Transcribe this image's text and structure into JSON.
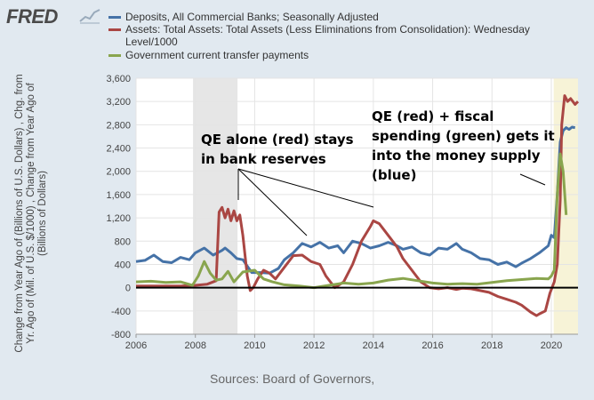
{
  "logo": {
    "text": "FRED"
  },
  "legend": [
    {
      "label": "Deposits, All Commercial Banks; Seasonally Adjusted",
      "color": "#4572a7"
    },
    {
      "label": "Assets: Total Assets: Total Assets (Less Eliminations from Consolidation): Wednesday Level/1000",
      "color": "#aa4643"
    },
    {
      "label": "Government current transfer payments",
      "color": "#89a54e"
    }
  ],
  "ylabel": "Change from Year Ago of (Billions of U.S. Dollars) , Chg. from Yr. Ago of (Mil. of U.S. $/1000) , Change from Year Ago of (Billions of Dollars)",
  "source": "Sources: Board of Governors,",
  "annotations": {
    "left_line1": "QE alone (red) stays",
    "left_line2": "in bank reserves",
    "right_line1": "QE (red) + fiscal",
    "right_line2": "spending (green) gets it",
    "right_line3": "into the money supply",
    "right_line4": "(blue)"
  },
  "chart_data": {
    "type": "line",
    "xlim": [
      2006,
      2020.9
    ],
    "ylim": [
      -800,
      3600
    ],
    "x_ticks": [
      2006,
      2008,
      2010,
      2012,
      2014,
      2016,
      2018,
      2020
    ],
    "y_ticks": [
      -800,
      -400,
      0,
      400,
      800,
      1200,
      1600,
      2000,
      2400,
      2800,
      3200,
      3600
    ],
    "y_tick_labels": [
      "-800",
      "-400",
      "0",
      "400",
      "800",
      "1,200",
      "1,600",
      "2,000",
      "2,400",
      "2,800",
      "3,200",
      "3,600"
    ],
    "recessions": [
      [
        2007.92,
        2009.42
      ],
      [
        2020.08,
        2020.9
      ]
    ],
    "series": [
      {
        "name": "Deposits, All Commercial Banks; Seasonally Adjusted",
        "color": "#4572a7",
        "x": [
          2006.0,
          2006.3,
          2006.6,
          2006.9,
          2007.2,
          2007.5,
          2007.8,
          2008.0,
          2008.3,
          2008.6,
          2008.9,
          2009.0,
          2009.2,
          2009.4,
          2009.6,
          2009.9,
          2010.2,
          2010.5,
          2010.8,
          2011.0,
          2011.3,
          2011.6,
          2011.9,
          2012.2,
          2012.5,
          2012.8,
          2013.0,
          2013.3,
          2013.6,
          2013.9,
          2014.2,
          2014.5,
          2014.8,
          2015.0,
          2015.3,
          2015.6,
          2015.9,
          2016.2,
          2016.5,
          2016.8,
          2017.0,
          2017.3,
          2017.6,
          2017.9,
          2018.2,
          2018.5,
          2018.8,
          2019.0,
          2019.3,
          2019.6,
          2019.9,
          2020.0,
          2020.1,
          2020.2,
          2020.3,
          2020.4,
          2020.5,
          2020.6,
          2020.7,
          2020.8
        ],
        "y": [
          450,
          470,
          560,
          450,
          430,
          520,
          480,
          600,
          680,
          560,
          640,
          680,
          600,
          500,
          480,
          260,
          260,
          250,
          330,
          480,
          600,
          760,
          700,
          780,
          680,
          720,
          600,
          800,
          760,
          680,
          720,
          780,
          720,
          660,
          700,
          600,
          560,
          680,
          660,
          760,
          660,
          600,
          500,
          480,
          400,
          440,
          360,
          420,
          500,
          600,
          720,
          900,
          860,
          1600,
          2500,
          2700,
          2750,
          2720,
          2760,
          2750
        ]
      },
      {
        "name": "Assets: Total Assets: Total Assets (Less Eliminations from Consolidation): Wednesday Level/1000",
        "color": "#aa4643",
        "x": [
          2006.0,
          2006.5,
          2007.0,
          2007.5,
          2008.0,
          2008.4,
          2008.7,
          2008.8,
          2008.9,
          2009.0,
          2009.1,
          2009.2,
          2009.3,
          2009.4,
          2009.5,
          2009.6,
          2009.75,
          2009.85,
          2009.95,
          2010.1,
          2010.3,
          2010.5,
          2010.7,
          2011.0,
          2011.3,
          2011.6,
          2011.9,
          2012.2,
          2012.4,
          2012.7,
          2013.0,
          2013.3,
          2013.6,
          2013.9,
          2014.0,
          2014.2,
          2014.5,
          2014.8,
          2015.0,
          2015.3,
          2015.6,
          2015.9,
          2016.2,
          2016.5,
          2016.8,
          2017.0,
          2017.3,
          2017.6,
          2017.9,
          2018.2,
          2018.5,
          2018.8,
          2019.0,
          2019.3,
          2019.5,
          2019.6,
          2019.8,
          2019.95,
          2020.1,
          2020.2,
          2020.3,
          2020.35,
          2020.45,
          2020.55,
          2020.65,
          2020.8,
          2020.9
        ],
        "y": [
          30,
          30,
          30,
          30,
          40,
          60,
          120,
          1300,
          1380,
          1200,
          1350,
          1150,
          1320,
          1150,
          1250,
          900,
          200,
          -50,
          0,
          150,
          300,
          250,
          150,
          350,
          550,
          560,
          450,
          400,
          200,
          0,
          100,
          400,
          800,
          1050,
          1150,
          1100,
          900,
          700,
          500,
          300,
          100,
          0,
          -20,
          0,
          -30,
          -10,
          -20,
          -50,
          -80,
          -150,
          -200,
          -250,
          -300,
          -420,
          -480,
          -450,
          -400,
          -100,
          100,
          400,
          1500,
          2800,
          3300,
          3200,
          3250,
          3150,
          3200
        ]
      },
      {
        "name": "Government current transfer payments",
        "color": "#89a54e",
        "x": [
          2006.0,
          2006.5,
          2007.0,
          2007.5,
          2007.9,
          2008.1,
          2008.3,
          2008.5,
          2008.7,
          2008.9,
          2009.1,
          2009.3,
          2009.6,
          2010.0,
          2010.3,
          2010.6,
          2011.0,
          2011.5,
          2012.0,
          2012.5,
          2013.0,
          2013.5,
          2014.0,
          2014.5,
          2015.0,
          2015.5,
          2016.0,
          2016.5,
          2017.0,
          2017.5,
          2018.0,
          2018.5,
          2019.0,
          2019.5,
          2019.9,
          2020.0,
          2020.1,
          2020.2,
          2020.3,
          2020.4,
          2020.5
        ],
        "y": [
          100,
          110,
          90,
          100,
          40,
          200,
          450,
          250,
          130,
          150,
          280,
          100,
          270,
          300,
          150,
          100,
          50,
          30,
          0,
          40,
          80,
          60,
          80,
          130,
          160,
          120,
          80,
          60,
          70,
          60,
          90,
          120,
          140,
          160,
          150,
          200,
          300,
          1600,
          2300,
          2000,
          1250
        ]
      }
    ]
  }
}
